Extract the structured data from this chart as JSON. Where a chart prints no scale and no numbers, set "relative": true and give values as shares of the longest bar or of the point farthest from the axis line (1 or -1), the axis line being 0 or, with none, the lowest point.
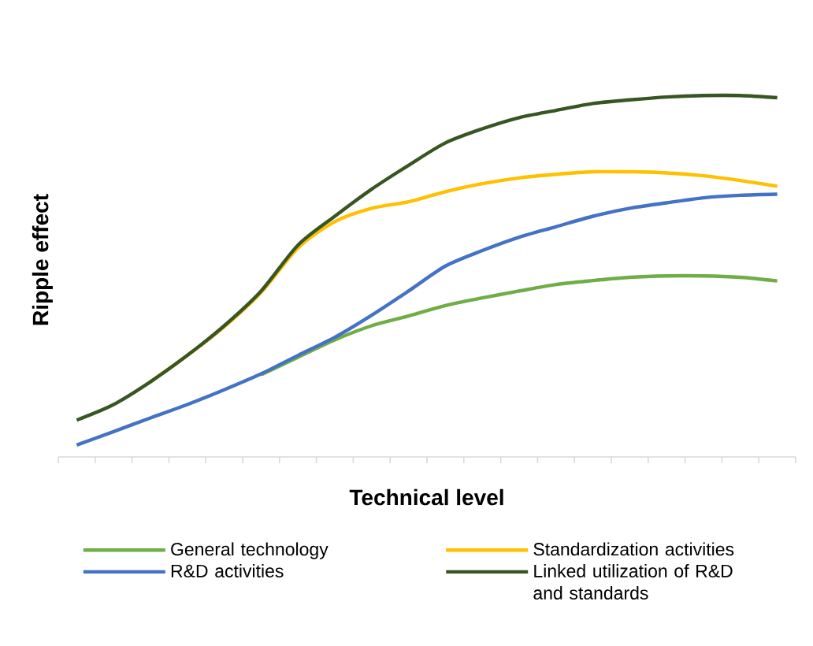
{
  "chart_data": {
    "type": "line",
    "relative": true,
    "xlabel": "Technical level",
    "ylabel": "Ripple effect",
    "legend": "bottom",
    "marker": "none",
    "line_style": "solid",
    "categories": [
      null,
      null,
      null,
      null,
      null,
      null,
      null,
      null,
      null,
      null,
      null,
      null,
      null,
      null,
      null,
      null,
      null,
      null,
      null,
      null
    ],
    "series": [
      {
        "name": "General technology",
        "color": "#70ad47",
        "values": [
          null,
          null,
          null,
          null,
          null,
          0.227,
          0.276,
          0.324,
          0.363,
          0.39,
          0.419,
          0.44,
          0.459,
          0.477,
          0.488,
          0.497,
          0.501,
          0.501,
          0.497,
          0.487
        ]
      },
      {
        "name": "Standardization activities",
        "color": "#ffc000",
        "values": [
          null,
          null,
          0.208,
          0.281,
          0.36,
          0.455,
          0.578,
          0.651,
          0.688,
          0.706,
          0.734,
          0.756,
          0.772,
          0.782,
          0.789,
          0.789,
          0.786,
          0.778,
          0.765,
          0.749
        ]
      },
      {
        "name": "R&D activities",
        "color": "#4472c4",
        "values": [
          0.033,
          0.07,
          0.108,
          0.145,
          0.186,
          0.23,
          0.281,
          0.331,
          0.392,
          0.459,
          0.528,
          0.571,
          0.608,
          0.637,
          0.666,
          0.688,
          0.703,
          0.717,
          0.724,
          0.727
        ]
      },
      {
        "name": "Linked utilization of R&D and standards",
        "color": "#375623",
        "values": [
          0.102,
          0.145,
          0.208,
          0.281,
          0.363,
          0.459,
          0.586,
          0.666,
          0.741,
          0.807,
          0.869,
          0.908,
          0.939,
          0.959,
          0.978,
          0.988,
          0.996,
          1,
          1,
          0.994
        ]
      }
    ]
  }
}
